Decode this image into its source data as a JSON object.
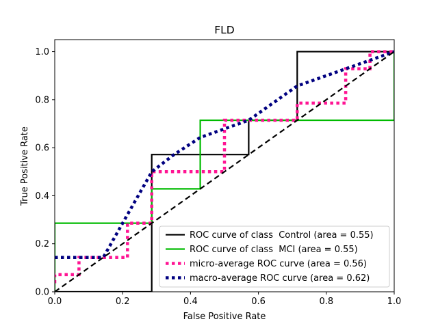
{
  "chart_data": {
    "type": "line",
    "title": "FLD",
    "xlabel": "False Positive Rate",
    "ylabel": "True Positive Rate",
    "xlim": [
      0,
      1
    ],
    "ylim": [
      0,
      1.05
    ],
    "xticks": [
      "0.0",
      "0.2",
      "0.4",
      "0.6",
      "0.8",
      "1.0"
    ],
    "yticks": [
      "0.0",
      "0.2",
      "0.4",
      "0.6",
      "0.8",
      "1.0"
    ],
    "legend_position": "lower-right",
    "series": [
      {
        "name": "ROC curve of class  Control (area = 0.55)",
        "color": "#000000",
        "style": "solid",
        "x": [
          0,
          0.2857,
          0.2857,
          0.5714,
          0.5714,
          0.7143,
          0.7143,
          1.0
        ],
        "y": [
          0,
          0,
          0.5714,
          0.5714,
          0.7143,
          0.7143,
          1.0,
          1.0
        ]
      },
      {
        "name": "ROC curve of class  MCI (area = 0.55)",
        "color": "#00bb00",
        "style": "solid",
        "x": [
          0,
          0,
          0.2857,
          0.2857,
          0.4286,
          0.4286,
          1.0,
          1.0
        ],
        "y": [
          0,
          0.2857,
          0.2857,
          0.4286,
          0.4286,
          0.7143,
          0.7143,
          1.0
        ]
      },
      {
        "name": "micro-average ROC curve (area = 0.56)",
        "color": "#ff1493",
        "style": "dotted",
        "x": [
          0,
          0,
          0.0714,
          0.0714,
          0.2143,
          0.2143,
          0.2857,
          0.2857,
          0.5,
          0.5,
          0.7143,
          0.7143,
          0.8571,
          0.8571,
          0.9286,
          0.9286,
          1.0
        ],
        "y": [
          0.0357,
          0.0714,
          0.0714,
          0.1429,
          0.1429,
          0.2857,
          0.2857,
          0.5,
          0.5,
          0.7143,
          0.7143,
          0.7857,
          0.7857,
          0.9286,
          0.9286,
          1.0,
          1.0
        ]
      },
      {
        "name": "macro-average ROC curve (area = 0.62)",
        "color": "#000080",
        "style": "dotted",
        "x": [
          0,
          0.143,
          0.2,
          0.286,
          0.35,
          0.429,
          0.571,
          0.714,
          0.8,
          0.9,
          1.0
        ],
        "y": [
          0.143,
          0.143,
          0.286,
          0.5,
          0.57,
          0.643,
          0.714,
          0.857,
          0.9,
          0.95,
          1.0
        ]
      },
      {
        "name": "",
        "color": "#000000",
        "style": "dashed",
        "x": [
          0,
          1
        ],
        "y": [
          0,
          1
        ]
      }
    ]
  }
}
